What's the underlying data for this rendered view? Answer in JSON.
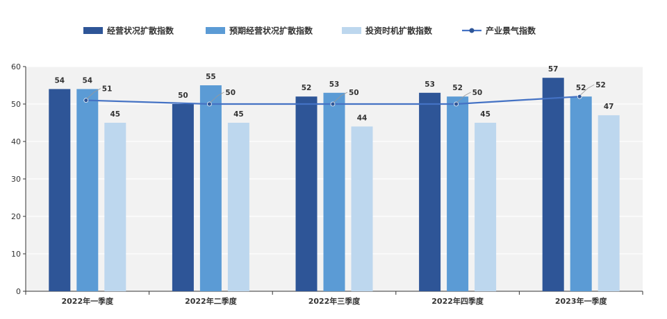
{
  "chart_data": {
    "type": "bar",
    "categories": [
      "2022年一季度",
      "2022年二季度",
      "2022年三季度",
      "2022年四季度",
      "2023年一季度"
    ],
    "series": [
      {
        "name": "经营状况扩散指数",
        "kind": "bar",
        "color": "#2e5597",
        "values": [
          54,
          50,
          52,
          53,
          57
        ]
      },
      {
        "name": "预期经营状况扩散指数",
        "kind": "bar",
        "color": "#5b9bd5",
        "values": [
          54,
          55,
          53,
          52,
          52
        ]
      },
      {
        "name": "投资时机扩散指数",
        "kind": "bar",
        "color": "#bdd7ee",
        "values": [
          45,
          45,
          44,
          45,
          47
        ]
      },
      {
        "name": "产业景气指数",
        "kind": "line",
        "color": "#4472c4",
        "values": [
          51,
          50,
          50,
          50,
          52
        ]
      }
    ],
    "ylim": [
      0,
      60
    ],
    "yticks": [
      0,
      10,
      20,
      30,
      40,
      50,
      60
    ],
    "grid": true,
    "legend_position": "top",
    "plot_background": "#f2f2f2"
  }
}
